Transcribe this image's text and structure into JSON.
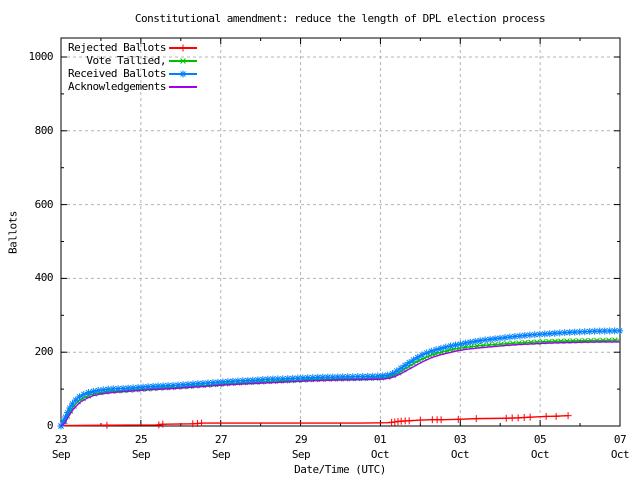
{
  "title": "Constitutional amendment: reduce the length of DPL election process",
  "chart_data": {
    "type": "line",
    "title": "Constitutional amendment: reduce the length of DPL election process",
    "xlabel": "Date/Time (UTC)",
    "ylabel": "Ballots",
    "x_unit_note": "x values are days since 23 Sep 00:00 UTC",
    "xlim": [
      0,
      14
    ],
    "ylim": [
      0,
      1050
    ],
    "grid": true,
    "grid_color": "#b4b4b4",
    "legend_position": "top-left",
    "y_axis": {
      "label": "Ballots",
      "ticks": [
        "0",
        "200",
        "400",
        "600",
        "800",
        "1000"
      ],
      "tick_values": [
        0,
        200,
        400,
        600,
        800,
        1000
      ],
      "minor_tick_step": 100
    },
    "x_axis": {
      "label": "Date/Time (UTC)",
      "ticks": [
        {
          "day": "23",
          "month": "Sep",
          "value": 0
        },
        {
          "day": "25",
          "month": "Sep",
          "value": 2
        },
        {
          "day": "27",
          "month": "Sep",
          "value": 4
        },
        {
          "day": "29",
          "month": "Sep",
          "value": 6
        },
        {
          "day": "01",
          "month": "Oct",
          "value": 8
        },
        {
          "day": "03",
          "month": "Oct",
          "value": 10
        },
        {
          "day": "05",
          "month": "Oct",
          "value": 12
        },
        {
          "day": "07",
          "month": "Oct",
          "value": 14
        }
      ],
      "minor_tick_step": 1
    },
    "series": [
      {
        "name": "Rejected Ballots",
        "color": "#ff0000",
        "marker": "plus",
        "points": [
          [
            0,
            1
          ],
          [
            1.1,
            2
          ],
          [
            2.4,
            3
          ],
          [
            2.5,
            4
          ],
          [
            2.6,
            5
          ],
          [
            3.3,
            6
          ],
          [
            3.45,
            7
          ],
          [
            3.55,
            8
          ],
          [
            7.5,
            8
          ],
          [
            8.2,
            9
          ],
          [
            8.3,
            10
          ],
          [
            8.4,
            12
          ],
          [
            8.55,
            13
          ],
          [
            8.7,
            14
          ],
          [
            9.0,
            16
          ],
          [
            9.3,
            17
          ],
          [
            9.6,
            17
          ],
          [
            9.95,
            18
          ],
          [
            10.4,
            20
          ],
          [
            11.15,
            21
          ],
          [
            11.45,
            22
          ],
          [
            11.75,
            24
          ],
          [
            12.15,
            26
          ],
          [
            12.45,
            27
          ],
          [
            12.7,
            28
          ]
        ],
        "markers_at": [
          [
            1.15,
            2
          ],
          [
            2.45,
            3
          ],
          [
            2.55,
            5
          ],
          [
            3.3,
            6
          ],
          [
            3.42,
            7
          ],
          [
            3.52,
            8
          ],
          [
            8.28,
            10
          ],
          [
            8.36,
            11
          ],
          [
            8.44,
            12
          ],
          [
            8.52,
            13
          ],
          [
            8.62,
            14
          ],
          [
            8.72,
            14
          ],
          [
            9.0,
            16
          ],
          [
            9.3,
            17
          ],
          [
            9.42,
            17
          ],
          [
            9.52,
            17
          ],
          [
            9.95,
            18
          ],
          [
            10.4,
            20
          ],
          [
            11.15,
            21
          ],
          [
            11.3,
            22
          ],
          [
            11.45,
            22
          ],
          [
            11.6,
            23
          ],
          [
            11.75,
            24
          ],
          [
            12.15,
            26
          ],
          [
            12.4,
            26
          ],
          [
            12.7,
            28
          ]
        ]
      },
      {
        "name": "Vote Tallied,",
        "color": "#00c000",
        "marker": "x",
        "marker_step_px": 6,
        "points": [
          [
            0,
            0
          ],
          [
            0.04,
            4
          ],
          [
            0.09,
            11
          ],
          [
            0.14,
            22
          ],
          [
            0.2,
            35
          ],
          [
            0.28,
            48
          ],
          [
            0.36,
            59
          ],
          [
            0.46,
            69
          ],
          [
            0.6,
            78
          ],
          [
            0.75,
            85
          ],
          [
            0.95,
            90
          ],
          [
            1.25,
            94
          ],
          [
            1.7,
            97
          ],
          [
            2.1,
            100
          ],
          [
            2.5,
            103
          ],
          [
            2.9,
            105
          ],
          [
            3.3,
            108
          ],
          [
            3.7,
            111
          ],
          [
            4.1,
            114
          ],
          [
            4.5,
            117
          ],
          [
            4.9,
            119
          ],
          [
            5.3,
            121
          ],
          [
            5.7,
            123
          ],
          [
            6.1,
            125
          ],
          [
            6.6,
            127
          ],
          [
            7.1,
            128
          ],
          [
            7.6,
            129
          ],
          [
            8.0,
            130
          ],
          [
            8.2,
            133
          ],
          [
            8.35,
            138
          ],
          [
            8.5,
            147
          ],
          [
            8.65,
            157
          ],
          [
            8.8,
            167
          ],
          [
            8.95,
            176
          ],
          [
            9.1,
            184
          ],
          [
            9.25,
            191
          ],
          [
            9.45,
            198
          ],
          [
            9.65,
            203
          ],
          [
            9.85,
            208
          ],
          [
            10.05,
            212
          ],
          [
            10.35,
            216
          ],
          [
            10.65,
            219
          ],
          [
            11.05,
            222
          ],
          [
            11.45,
            225
          ],
          [
            11.85,
            227
          ],
          [
            12.25,
            229
          ],
          [
            12.65,
            230
          ],
          [
            13.05,
            231
          ],
          [
            13.45,
            232
          ],
          [
            14,
            233
          ]
        ]
      },
      {
        "name": "Received Ballots",
        "color": "#0080ff",
        "marker": "asterisk",
        "marker_step_px": 5,
        "points": [
          [
            0,
            0
          ],
          [
            0.03,
            5
          ],
          [
            0.07,
            14
          ],
          [
            0.12,
            26
          ],
          [
            0.18,
            40
          ],
          [
            0.25,
            55
          ],
          [
            0.33,
            66
          ],
          [
            0.42,
            76
          ],
          [
            0.55,
            85
          ],
          [
            0.7,
            91
          ],
          [
            0.9,
            96
          ],
          [
            1.2,
            100
          ],
          [
            1.6,
            102
          ],
          [
            2.0,
            105
          ],
          [
            2.4,
            108
          ],
          [
            2.8,
            110
          ],
          [
            3.2,
            113
          ],
          [
            3.6,
            116
          ],
          [
            4.0,
            119
          ],
          [
            4.4,
            122
          ],
          [
            4.8,
            124
          ],
          [
            5.2,
            127
          ],
          [
            5.6,
            128
          ],
          [
            6.0,
            130
          ],
          [
            6.5,
            132
          ],
          [
            7.0,
            133
          ],
          [
            7.5,
            134
          ],
          [
            7.9,
            135
          ],
          [
            8.15,
            137
          ],
          [
            8.3,
            142
          ],
          [
            8.45,
            152
          ],
          [
            8.6,
            163
          ],
          [
            8.75,
            174
          ],
          [
            8.9,
            184
          ],
          [
            9.05,
            193
          ],
          [
            9.2,
            200
          ],
          [
            9.4,
            207
          ],
          [
            9.6,
            213
          ],
          [
            9.8,
            218
          ],
          [
            10.0,
            222
          ],
          [
            10.3,
            228
          ],
          [
            10.6,
            233
          ],
          [
            11.0,
            238
          ],
          [
            11.4,
            243
          ],
          [
            11.8,
            247
          ],
          [
            12.2,
            250
          ],
          [
            12.6,
            253
          ],
          [
            13.0,
            255
          ],
          [
            13.4,
            257
          ],
          [
            14,
            258
          ]
        ]
      },
      {
        "name": "Acknowledgements",
        "color": "#a000f0",
        "marker": "none",
        "points": [
          [
            0,
            0
          ],
          [
            0.05,
            3
          ],
          [
            0.1,
            9
          ],
          [
            0.15,
            19
          ],
          [
            0.22,
            31
          ],
          [
            0.3,
            44
          ],
          [
            0.4,
            56
          ],
          [
            0.5,
            66
          ],
          [
            0.65,
            75
          ],
          [
            0.8,
            82
          ],
          [
            1.0,
            87
          ],
          [
            1.3,
            91
          ],
          [
            1.8,
            95
          ],
          [
            2.2,
            98
          ],
          [
            2.6,
            100
          ],
          [
            3.0,
            103
          ],
          [
            3.4,
            106
          ],
          [
            3.8,
            109
          ],
          [
            4.2,
            112
          ],
          [
            4.6,
            114
          ],
          [
            5.0,
            116
          ],
          [
            5.4,
            118
          ],
          [
            5.8,
            120
          ],
          [
            6.2,
            122
          ],
          [
            6.7,
            124
          ],
          [
            7.2,
            125
          ],
          [
            7.7,
            126
          ],
          [
            8.05,
            127
          ],
          [
            8.25,
            130
          ],
          [
            8.4,
            136
          ],
          [
            8.55,
            144
          ],
          [
            8.7,
            153
          ],
          [
            8.85,
            162
          ],
          [
            9.0,
            171
          ],
          [
            9.15,
            179
          ],
          [
            9.3,
            186
          ],
          [
            9.5,
            193
          ],
          [
            9.7,
            198
          ],
          [
            9.9,
            203
          ],
          [
            10.1,
            207
          ],
          [
            10.4,
            211
          ],
          [
            10.7,
            214
          ],
          [
            11.1,
            218
          ],
          [
            11.5,
            221
          ],
          [
            11.9,
            223
          ],
          [
            12.3,
            225
          ],
          [
            12.7,
            226
          ],
          [
            13.1,
            227
          ],
          [
            13.5,
            228
          ],
          [
            14,
            228
          ]
        ]
      }
    ]
  }
}
